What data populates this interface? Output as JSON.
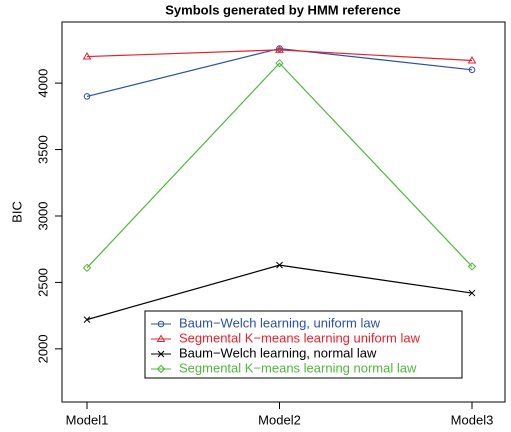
{
  "chart_data": {
    "type": "line",
    "title": "Symbols generated by HMM reference",
    "y_label": "BIC",
    "categories": [
      "Model1",
      "Model2",
      "Model3"
    ],
    "series": [
      {
        "name": "Baum−Welch learning, uniform law",
        "color": "#2b4fa8",
        "marker": "circle",
        "values": [
          3900,
          4260,
          4100
        ]
      },
      {
        "name": "Segmental K−means learning uniform law",
        "color": "#e8212b",
        "marker": "triangle",
        "values": [
          4200,
          4250,
          4170
        ]
      },
      {
        "name": "Baum−Welch learning, normal law",
        "color": "#000000",
        "marker": "cross",
        "values": [
          2220,
          2630,
          2420
        ]
      },
      {
        "name": "Segmental K−means learning normal law",
        "color": "#4fb83a",
        "marker": "diamond",
        "values": [
          2610,
          4150,
          2620
        ]
      }
    ],
    "ylim": [
      1600,
      4460
    ],
    "yticks": [
      2000,
      2500,
      3000,
      3500,
      4000
    ],
    "grid": false,
    "legend": "bottom-right"
  }
}
